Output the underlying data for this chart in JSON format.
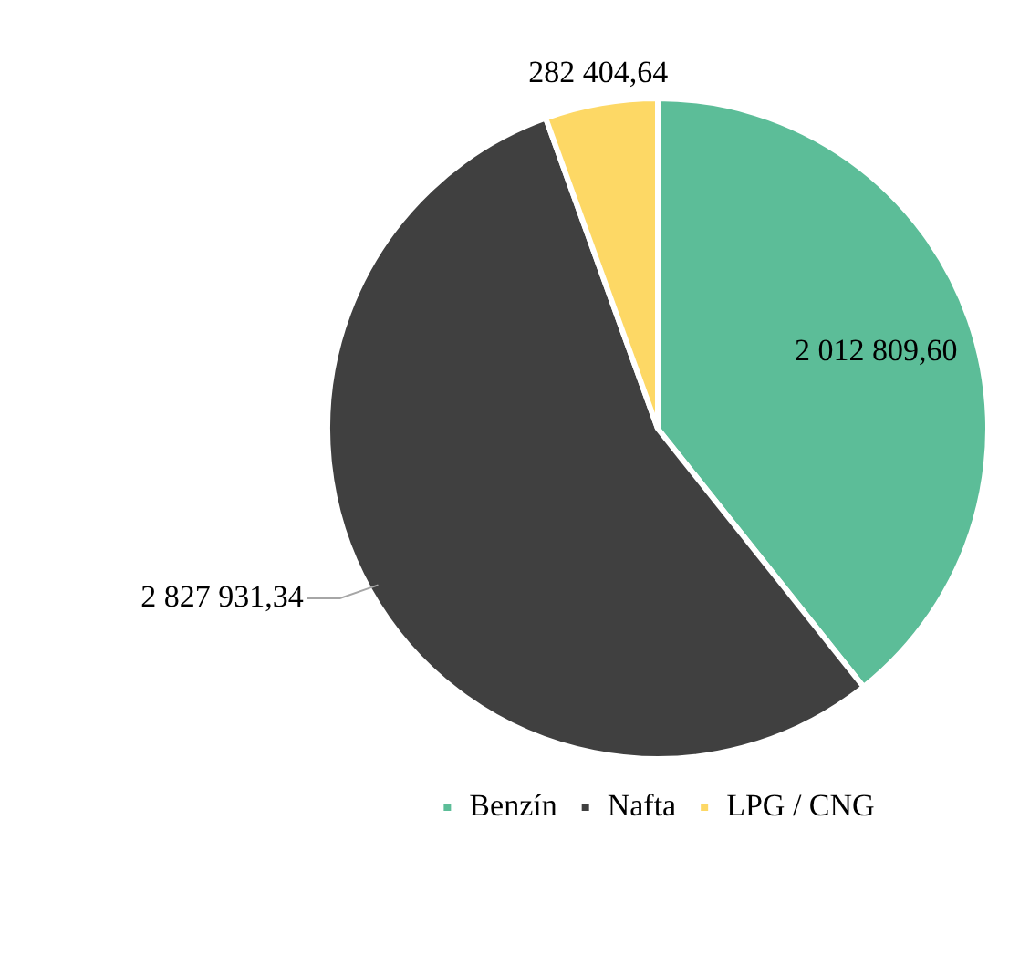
{
  "chart_data": {
    "type": "pie",
    "categories": [
      "Benzín",
      "Nafta",
      "LPG / CNG"
    ],
    "values": [
      2012809.6,
      2827931.34,
      282404.64
    ],
    "value_labels": [
      "2 012 809,60",
      "2 827 931,34",
      "282 404,64"
    ],
    "colors": [
      "#5cbd98",
      "#404040",
      "#fdd865"
    ],
    "legend": "bottom"
  }
}
